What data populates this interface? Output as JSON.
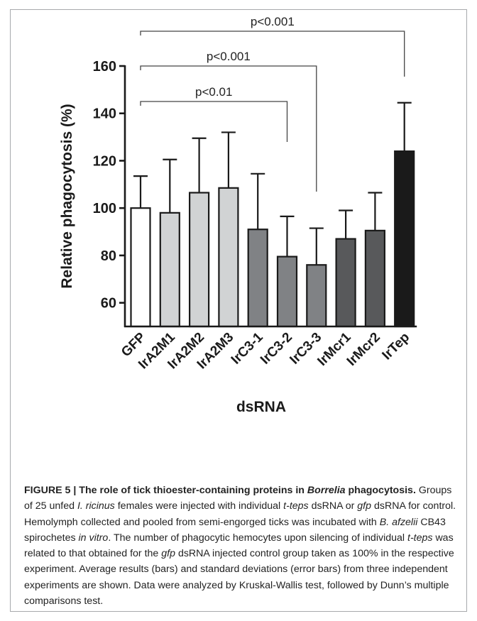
{
  "chart_data": {
    "type": "bar",
    "xlabel": "dsRNA",
    "ylabel": "Relative phagocytosis (%)",
    "ylim": [
      50,
      160
    ],
    "yticks": [
      60,
      80,
      100,
      120,
      140,
      160
    ],
    "categories": [
      "GFP",
      "IrA2M1",
      "IrA2M2",
      "IrA2M3",
      "IrC3-1",
      "IrC3-2",
      "IrC3-3",
      "IrMcr1",
      "IrMcr2",
      "IrTep"
    ],
    "values": [
      100,
      98,
      106.5,
      108.5,
      91,
      79.5,
      76,
      87,
      90.5,
      124
    ],
    "errors": [
      13.5,
      22.5,
      23,
      23.5,
      23.5,
      17,
      15.5,
      12,
      16,
      20.5
    ],
    "bar_colors": [
      "#ffffff",
      "#d1d3d4",
      "#d1d3d4",
      "#d1d3d4",
      "#808285",
      "#808285",
      "#808285",
      "#58595b",
      "#58595b",
      "#1a1a1a"
    ],
    "significance": [
      {
        "from": "GFP",
        "to": "IrC3-2",
        "label": "p<0.01"
      },
      {
        "from": "GFP",
        "to": "IrC3-3",
        "label": "p<0.001"
      },
      {
        "from": "GFP",
        "to": "IrTep",
        "label": "p<0.001"
      }
    ]
  },
  "caption": {
    "figure_label": "FIGURE 5 |",
    "title_a": "The role of tick thioester-containing proteins in",
    "title_genus": "Borrelia",
    "title_b": "phagocytosis.",
    "t1": "Groups of 25 unfed",
    "species1": "I. ricinus",
    "t2": "females were injected with individual",
    "gene1": "t-teps",
    "t3": "dsRNA or",
    "gene2": "gfp",
    "t4": "dsRNA for control. Hemolymph collected and pooled from semi-engorged ticks was incubated with",
    "species2": "B. afzelii",
    "t5": "CB43 spirochetes",
    "invitro": "in vitro",
    "t6": ". The number of phagocytic hemocytes upon silencing of individual",
    "gene3": "t-teps",
    "t7": "was related to that obtained for the",
    "gene4": "gfp",
    "t8": "dsRNA injected control group taken as 100% in the respective experiment. Average results (bars) and standard deviations (error bars) from three independent experiments are shown. Data were analyzed by Kruskal-Wallis test, followed by Dunn’s multiple comparisons test."
  }
}
